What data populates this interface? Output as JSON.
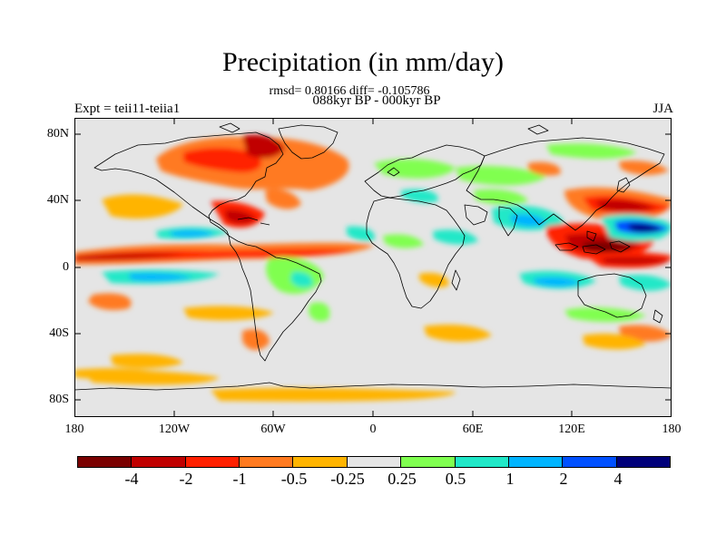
{
  "title": "Precipitation (in mm/day)",
  "stats": "rmsd= 0.80166 diff= -0.105786",
  "period": "088kyr BP - 000kyr BP",
  "expt": "Expt = teii11-teiia1",
  "season": "JJA",
  "map": {
    "projection": "cylindrical equidistant",
    "lat_ticks": [
      "80N",
      "40N",
      "0",
      "40S",
      "80S"
    ],
    "lon_ticks": [
      "180",
      "120W",
      "60W",
      "0",
      "60E",
      "120E",
      "180"
    ],
    "background_color": "#e5e5e5"
  },
  "colorbar": {
    "colors": [
      "#7a0000",
      "#c00000",
      "#ff2000",
      "#ff7a20",
      "#ffb400",
      "#e5e5e5",
      "#80ff50",
      "#20e8c8",
      "#00b4ff",
      "#0050ff",
      "#00007a"
    ],
    "labels": [
      "-4",
      "-2",
      "-1",
      "-0.5",
      "-0.25",
      "0.25",
      "0.5",
      "1",
      "2",
      "4"
    ]
  }
}
